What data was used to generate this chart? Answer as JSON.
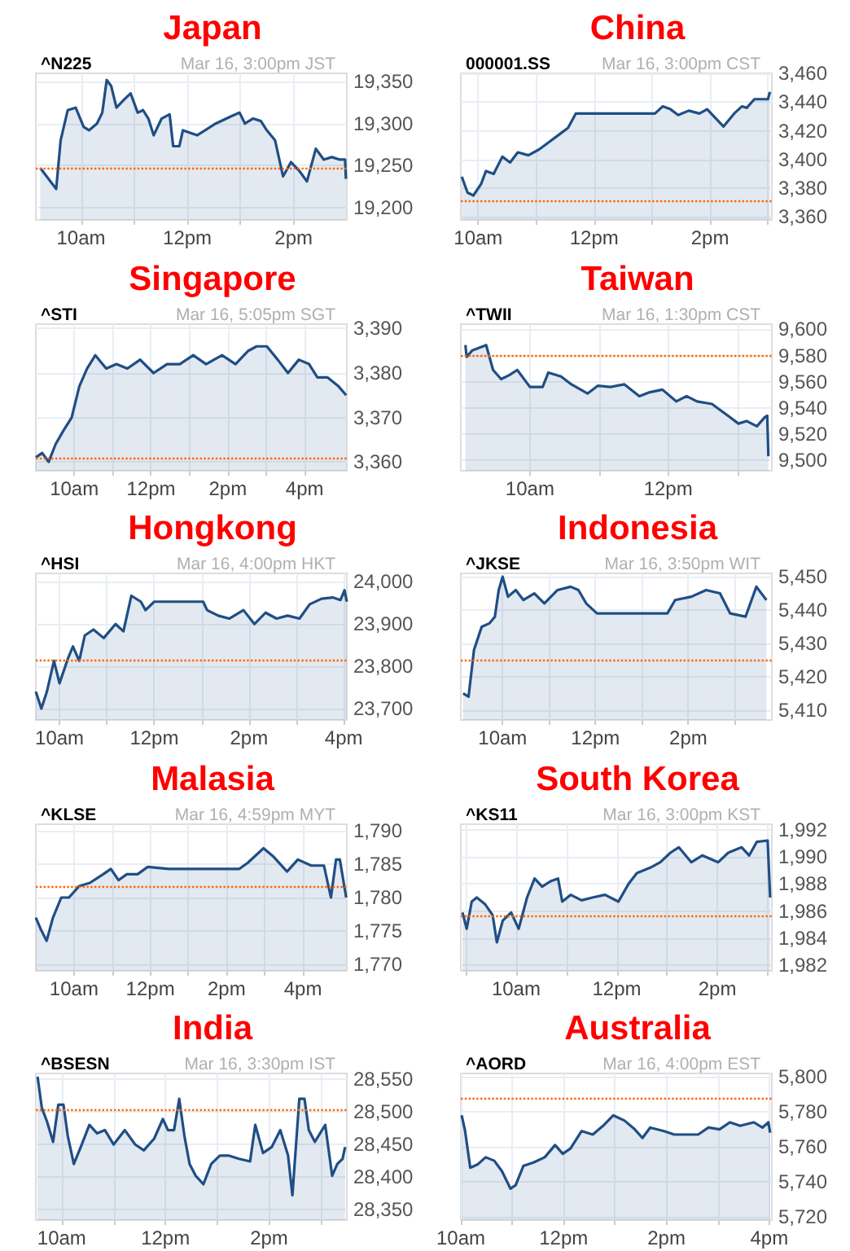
{
  "chart_data": [
    {
      "type": "area",
      "title": "Japan",
      "subtitle": "^N225",
      "annotations": [
        "Mar 16, 3:00pm JST"
      ],
      "color": "#1f4e85",
      "grid": true,
      "x": [
        "--03-16T09:14",
        "--03-16T09:32",
        "--03-16T09:37",
        "--03-16T09:45",
        "--03-16T09:54",
        "--03-16T10:03",
        "--03-16T10:09",
        "--03-16T10:18",
        "--03-16T10:24",
        "--03-16T10:29",
        "--03-16T10:34",
        "--03-16T10:40",
        "--03-16T10:49",
        "--03-16T10:56",
        "--03-16T11:04",
        "--03-16T11:10",
        "--03-16T11:16",
        "--03-16T11:22",
        "--03-16T11:31",
        "--03-16T11:40",
        "--03-16T11:44",
        "--03-16T11:51",
        "--03-16T11:55",
        "--03-16T12:11",
        "--03-16T12:32",
        "--03-16T12:50",
        "--03-16T12:59",
        "--03-16T13:05",
        "--03-16T13:14",
        "--03-16T13:23",
        "--03-16T13:29",
        "--03-16T13:39",
        "--03-16T13:48",
        "--03-16T13:57",
        "--03-16T14:06",
        "--03-16T14:15",
        "--03-16T14:25",
        "--03-16T14:34",
        "--03-16T14:43",
        "--03-16T14:52",
        "--03-16T14:58",
        "--03-16T14:59"
      ],
      "values": [
        19247,
        19222,
        19280,
        19316,
        19319,
        19296,
        19292,
        19300,
        19313,
        19352,
        19345,
        19319,
        19329,
        19336,
        19313,
        19316,
        19306,
        19286,
        19306,
        19311,
        19273,
        19273,
        19292,
        19286,
        19300,
        19309,
        19313,
        19300,
        19306,
        19303,
        19293,
        19280,
        19237,
        19254,
        19244,
        19231,
        19270,
        19257,
        19260,
        19257,
        19257,
        19234
      ],
      "xlim": [
        "--03-16T09:09",
        "--03-16T15:00"
      ],
      "xticks": [
        {
          "value": "--03-16T10:00",
          "label": "10am"
        },
        {
          "value": "--03-16T11:00",
          "label": null
        },
        {
          "value": "--03-16T12:00",
          "label": "12pm"
        },
        {
          "value": "--03-16T13:00",
          "label": null
        },
        {
          "value": "--03-16T14:00",
          "label": "2pm"
        }
      ],
      "ylim": [
        19185,
        19360
      ],
      "yticks": [
        {
          "value": 19200,
          "label": "19,200"
        },
        {
          "value": 19250,
          "label": "19,250"
        },
        {
          "value": 19300,
          "label": "19,300"
        },
        {
          "value": 19350,
          "label": "19,350"
        }
      ],
      "ref_lines": [
        {
          "axis": "y",
          "value": 19247,
          "color": "#ff6600",
          "line_style": "dotted"
        }
      ]
    },
    {
      "type": "area",
      "title": "China",
      "subtitle": "000001.SS",
      "annotations": [
        "Mar 16, 3:00pm CST"
      ],
      "color": "#1f4e85",
      "grid": true,
      "x": [
        "--03-16T09:43",
        "--03-16T09:49",
        "--03-16T09:55",
        "--03-16T10:03",
        "--03-16T10:08",
        "--03-16T10:16",
        "--03-16T10:25",
        "--03-16T10:33",
        "--03-16T10:41",
        "--03-16T10:52",
        "--03-16T11:03",
        "--03-16T11:11",
        "--03-16T11:25",
        "--03-16T11:33",
        "--03-16T11:41",
        "--03-16T13:03",
        "--03-16T13:11",
        "--03-16T13:19",
        "--03-16T13:27",
        "--03-16T13:38",
        "--03-16T13:49",
        "--03-16T13:57",
        "--03-16T14:14",
        "--03-16T14:25",
        "--03-16T14:33",
        "--03-16T14:38",
        "--03-16T14:46",
        "--03-16T15:00",
        "--03-16T15:02"
      ],
      "values": [
        3388,
        3377,
        3375,
        3383,
        3392,
        3390,
        3402,
        3398,
        3405,
        3403,
        3407,
        3411,
        3418,
        3422,
        3432,
        3432,
        3437,
        3435,
        3431,
        3434,
        3432,
        3435,
        3423,
        3432,
        3437,
        3436,
        3442,
        3442,
        3447
      ],
      "xlim": [
        "--03-16T09:42",
        "--03-16T15:04"
      ],
      "xticks": [
        {
          "value": "--03-16T10:00",
          "label": "10am"
        },
        {
          "value": "--03-16T11:00",
          "label": null
        },
        {
          "value": "--03-16T12:00",
          "label": "12pm"
        },
        {
          "value": "--03-16T13:00",
          "label": null
        },
        {
          "value": "--03-16T14:00",
          "label": "2pm"
        },
        {
          "value": "--03-16T15:00",
          "label": null
        }
      ],
      "ylim": [
        3358,
        3460
      ],
      "yticks": [
        {
          "value": 3360,
          "label": "3,360"
        },
        {
          "value": 3380,
          "label": "3,380"
        },
        {
          "value": 3400,
          "label": "3,400"
        },
        {
          "value": 3420,
          "label": "3,420"
        },
        {
          "value": 3440,
          "label": "3,440"
        },
        {
          "value": 3460,
          "label": "3,460"
        }
      ],
      "ref_lines": [
        {
          "axis": "y",
          "value": 3371,
          "color": "#ff6600",
          "line_style": "dotted"
        }
      ]
    },
    {
      "type": "area",
      "title": "Singapore",
      "subtitle": "^STI",
      "annotations": [
        "Mar 16, 5:05pm SGT"
      ],
      "color": "#1f4e85",
      "grid": true,
      "x": [
        "--03-16T09:00",
        "--03-16T09:10",
        "--03-16T09:20",
        "--03-16T09:31",
        "--03-16T09:43",
        "--03-16T09:56",
        "--03-16T10:08",
        "--03-16T10:20",
        "--03-16T10:33",
        "--03-16T10:50",
        "--03-16T11:06",
        "--03-16T11:23",
        "--03-16T11:43",
        "--03-16T12:04",
        "--03-16T12:25",
        "--03-16T12:45",
        "--03-16T13:06",
        "--03-16T13:26",
        "--03-16T13:51",
        "--03-16T14:12",
        "--03-16T14:32",
        "--03-16T14:45",
        "--03-16T15:01",
        "--03-16T15:18",
        "--03-16T15:34",
        "--03-16T15:51",
        "--03-16T16:07",
        "--03-16T16:20",
        "--03-16T16:36",
        "--03-16T16:53",
        "--03-16T17:05"
      ],
      "values": [
        3361,
        3362,
        3360,
        3364,
        3367,
        3370,
        3377,
        3381,
        3384,
        3381,
        3382,
        3381,
        3383,
        3380,
        3382,
        3382,
        3384,
        3382,
        3384,
        3382,
        3385,
        3386,
        3386,
        3383,
        3380,
        3383,
        3382,
        3379,
        3379,
        3377,
        3375
      ],
      "xlim": [
        "--03-16T09:00",
        "--03-16T17:06"
      ],
      "xticks": [
        {
          "value": "--03-16T10:00",
          "label": "10am"
        },
        {
          "value": "--03-16T11:00",
          "label": null
        },
        {
          "value": "--03-16T12:00",
          "label": "12pm"
        },
        {
          "value": "--03-16T13:00",
          "label": null
        },
        {
          "value": "--03-16T14:00",
          "label": "2pm"
        },
        {
          "value": "--03-16T15:00",
          "label": null
        },
        {
          "value": "--03-16T16:00",
          "label": "4pm"
        }
      ],
      "ylim": [
        3358,
        3391
      ],
      "yticks": [
        {
          "value": 3360,
          "label": "3,360"
        },
        {
          "value": 3370,
          "label": "3,370"
        },
        {
          "value": 3380,
          "label": "3,380"
        },
        {
          "value": 3390,
          "label": "3,390"
        }
      ],
      "ref_lines": [
        {
          "axis": "y",
          "value": 3361,
          "color": "#ff6600",
          "line_style": "dotted"
        }
      ]
    },
    {
      "type": "area",
      "title": "Taiwan",
      "subtitle": "^TWII",
      "annotations": [
        "Mar 16, 1:30pm CST"
      ],
      "color": "#1f4e85",
      "grid": true,
      "x": [
        "--03-16T09:04",
        "--03-16T09:05",
        "--03-16T09:10",
        "--03-16T09:22",
        "--03-16T09:28",
        "--03-16T09:35",
        "--03-16T09:42",
        "--03-16T09:49",
        "--03-16T10:00",
        "--03-16T10:11",
        "--03-16T10:16",
        "--03-16T10:27",
        "--03-16T10:36",
        "--03-16T10:50",
        "--03-16T10:59",
        "--03-16T11:10",
        "--03-16T11:22",
        "--03-16T11:35",
        "--03-16T11:44",
        "--03-16T11:55",
        "--03-16T12:07",
        "--03-16T12:16",
        "--03-16T12:25",
        "--03-16T12:38",
        "--03-16T12:52",
        "--03-16T13:01",
        "--03-16T13:08",
        "--03-16T13:17",
        "--03-16T13:24",
        "--03-16T13:26",
        "--03-16T13:27"
      ],
      "values": [
        9588,
        9579,
        9584,
        9588,
        9569,
        9562,
        9565,
        9569,
        9556,
        9556,
        9567,
        9564,
        9558,
        9551,
        9557,
        9556,
        9558,
        9549,
        9552,
        9554,
        9545,
        9549,
        9545,
        9543,
        9534,
        9528,
        9530,
        9526,
        9533,
        9534,
        9503
      ],
      "xlim": [
        "--03-16T09:00",
        "--03-16T13:30"
      ],
      "xticks": [
        {
          "value": "--03-16T10:00",
          "label": "10am"
        },
        {
          "value": "--03-16T11:00",
          "label": null
        },
        {
          "value": "--03-16T12:00",
          "label": "12pm"
        },
        {
          "value": "--03-16T13:00",
          "label": null
        }
      ],
      "ylim": [
        9492,
        9604
      ],
      "yticks": [
        {
          "value": 9500,
          "label": "9,500"
        },
        {
          "value": 9520,
          "label": "9,520"
        },
        {
          "value": 9540,
          "label": "9,540"
        },
        {
          "value": 9560,
          "label": "9,560"
        },
        {
          "value": 9580,
          "label": "9,580"
        },
        {
          "value": 9600,
          "label": "9,600"
        }
      ],
      "ref_lines": [
        {
          "axis": "y",
          "value": 9580,
          "color": "#ff6600",
          "line_style": "dotted"
        }
      ]
    },
    {
      "type": "area",
      "title": "Hongkong",
      "subtitle": "^HSI",
      "annotations": [
        "Mar 16, 4:00pm HKT"
      ],
      "color": "#1f4e85",
      "grid": true,
      "x": [
        "--03-16T09:30",
        "--03-16T09:37",
        "--03-16T09:44",
        "--03-16T09:53",
        "--03-16T10:00",
        "--03-16T10:11",
        "--03-16T10:17",
        "--03-16T10:25",
        "--03-16T10:32",
        "--03-16T10:43",
        "--03-16T10:56",
        "--03-16T11:11",
        "--03-16T11:21",
        "--03-16T11:31",
        "--03-16T11:43",
        "--03-16T11:49",
        "--03-16T12:00",
        "--03-16T13:02",
        "--03-16T13:07",
        "--03-16T13:21",
        "--03-16T13:35",
        "--03-16T13:53",
        "--03-16T14:07",
        "--03-16T14:21",
        "--03-16T14:35",
        "--03-16T14:49",
        "--03-16T15:04",
        "--03-16T15:17",
        "--03-16T15:32",
        "--03-16T15:46",
        "--03-16T15:56",
        "--03-16T16:01",
        "--03-16T16:04"
      ],
      "values": [
        23740,
        23700,
        23740,
        23813,
        23760,
        23820,
        23847,
        23813,
        23873,
        23887,
        23867,
        23900,
        23883,
        23967,
        23953,
        23933,
        23953,
        23953,
        23933,
        23920,
        23913,
        23933,
        23900,
        23927,
        23913,
        23920,
        23913,
        23947,
        23960,
        23963,
        23957,
        23980,
        23953
      ],
      "xlim": [
        "--03-16T09:30",
        "--03-16T16:04"
      ],
      "xticks": [
        {
          "value": "--03-16T10:00",
          "label": "10am"
        },
        {
          "value": "--03-16T11:00",
          "label": null
        },
        {
          "value": "--03-16T12:00",
          "label": "12pm"
        },
        {
          "value": "--03-16T13:00",
          "label": null
        },
        {
          "value": "--03-16T14:00",
          "label": "2pm"
        },
        {
          "value": "--03-16T15:00",
          "label": null
        },
        {
          "value": "--03-16T16:00",
          "label": "4pm"
        }
      ],
      "ylim": [
        23673,
        24020
      ],
      "yticks": [
        {
          "value": 23700,
          "label": "23,700"
        },
        {
          "value": 23800,
          "label": "23,800"
        },
        {
          "value": 23900,
          "label": "23,900"
        },
        {
          "value": 24000,
          "label": "24,000"
        }
      ],
      "ref_lines": [
        {
          "axis": "y",
          "value": 23813,
          "color": "#ff6600",
          "line_style": "dotted"
        }
      ]
    },
    {
      "type": "area",
      "title": "Indonesia",
      "subtitle": "^JKSE",
      "annotations": [
        "Mar 16, 3:50pm WIT"
      ],
      "color": "#1f4e85",
      "grid": true,
      "x": [
        "--03-16T09:09",
        "--03-16T09:16",
        "--03-16T09:23",
        "--03-16T09:33",
        "--03-16T09:43",
        "--03-16T09:50",
        "--03-16T09:55",
        "--03-16T10:00",
        "--03-16T10:07",
        "--03-16T10:17",
        "--03-16T10:27",
        "--03-16T10:41",
        "--03-16T10:54",
        "--03-16T11:11",
        "--03-16T11:28",
        "--03-16T11:38",
        "--03-16T11:48",
        "--03-16T12:02",
        "--03-16T13:33",
        "--03-16T13:43",
        "--03-16T14:04",
        "--03-16T14:23",
        "--03-16T14:41",
        "--03-16T14:54",
        "--03-16T15:14",
        "--03-16T15:28",
        "--03-16T15:41"
      ],
      "values": [
        5415,
        5414,
        5428,
        5435,
        5436,
        5438,
        5446,
        5450,
        5444,
        5446,
        5443,
        5445,
        5442,
        5446,
        5447,
        5446,
        5442,
        5439,
        5439,
        5443,
        5444,
        5446,
        5445,
        5439,
        5438,
        5447,
        5443
      ],
      "xlim": [
        "--03-16T09:06",
        "--03-16T15:48"
      ],
      "xticks": [
        {
          "value": "--03-16T10:00",
          "label": "10am"
        },
        {
          "value": "--03-16T11:00",
          "label": null
        },
        {
          "value": "--03-16T12:00",
          "label": "12pm"
        },
        {
          "value": "--03-16T13:00",
          "label": null
        },
        {
          "value": "--03-16T14:00",
          "label": "2pm"
        },
        {
          "value": "--03-16T15:00",
          "label": null
        }
      ],
      "ylim": [
        5407,
        5451
      ],
      "yticks": [
        {
          "value": 5410,
          "label": "5,410"
        },
        {
          "value": 5420,
          "label": "5,420"
        },
        {
          "value": 5430,
          "label": "5,430"
        },
        {
          "value": 5440,
          "label": "5,440"
        },
        {
          "value": 5450,
          "label": "5,450"
        }
      ],
      "ref_lines": [
        {
          "axis": "y",
          "value": 5425,
          "color": "#ff6600",
          "line_style": "dotted"
        }
      ]
    },
    {
      "type": "area",
      "title": "Malasia",
      "subtitle": "^KLSE",
      "annotations": [
        "Mar 16, 4:59pm MYT"
      ],
      "color": "#1f4e85",
      "grid": true,
      "x": [
        "--03-16T09:00",
        "--03-16T09:08",
        "--03-16T09:17",
        "--03-16T09:27",
        "--03-16T09:40",
        "--03-16T09:52",
        "--03-16T10:08",
        "--03-16T10:25",
        "--03-16T10:46",
        "--03-16T10:58",
        "--03-16T11:10",
        "--03-16T11:23",
        "--03-16T11:40",
        "--03-16T11:56",
        "--03-16T12:29",
        "--03-16T14:20",
        "--03-16T14:33",
        "--03-16T14:58",
        "--03-16T15:14",
        "--03-16T15:35",
        "--03-16T15:52",
        "--03-16T16:13",
        "--03-16T16:33",
        "--03-16T16:44",
        "--03-16T16:52",
        "--03-16T16:58",
        "--03-16T17:08"
      ],
      "values": [
        1777,
        1775.2,
        1773.5,
        1777,
        1780,
        1780,
        1781.7,
        1782.2,
        1783.5,
        1784.3,
        1782.6,
        1783.5,
        1783.5,
        1784.6,
        1784.3,
        1784.3,
        1785.2,
        1787.4,
        1786.1,
        1783.9,
        1785.7,
        1784.8,
        1784.8,
        1780,
        1785.7,
        1785.7,
        1780
      ],
      "xlim": [
        "--03-16T09:00",
        "--03-16T17:09"
      ],
      "xticks": [
        {
          "value": "--03-16T10:00",
          "label": "10am"
        },
        {
          "value": "--03-16T11:00",
          "label": null
        },
        {
          "value": "--03-16T12:00",
          "label": "12pm"
        },
        {
          "value": "--03-16T13:00",
          "label": null
        },
        {
          "value": "--03-16T14:00",
          "label": "2pm"
        },
        {
          "value": "--03-16T15:00",
          "label": null
        },
        {
          "value": "--03-16T16:00",
          "label": "4pm"
        }
      ],
      "ylim": [
        1769,
        1791
      ],
      "yticks": [
        {
          "value": 1770,
          "label": "1,770"
        },
        {
          "value": 1775,
          "label": "1,775"
        },
        {
          "value": 1780,
          "label": "1,780"
        },
        {
          "value": 1785,
          "label": "1,785"
        },
        {
          "value": 1790,
          "label": "1,790"
        }
      ],
      "ref_lines": [
        {
          "axis": "y",
          "value": 1781.7,
          "color": "#ff6600",
          "line_style": "dotted"
        }
      ]
    },
    {
      "type": "area",
      "title": "South Korea",
      "subtitle": "^KS11",
      "annotations": [
        "Mar 16, 3:00pm KST"
      ],
      "color": "#1f4e85",
      "grid": true,
      "x": [
        "--03-16T08:56",
        "--03-16T09:01",
        "--03-16T09:07",
        "--03-16T09:13",
        "--03-16T09:23",
        "--03-16T09:32",
        "--03-16T09:37",
        "--03-16T09:44",
        "--03-16T09:54",
        "--03-16T10:03",
        "--03-16T10:13",
        "--03-16T10:22",
        "--03-16T10:31",
        "--03-16T10:41",
        "--03-16T10:50",
        "--03-16T10:55",
        "--03-16T11:05",
        "--03-16T11:18",
        "--03-16T11:31",
        "--03-16T11:46",
        "--03-16T12:02",
        "--03-16T12:14",
        "--03-16T12:24",
        "--03-16T12:40",
        "--03-16T12:52",
        "--03-16T13:04",
        "--03-16T13:14",
        "--03-16T13:29",
        "--03-16T13:42",
        "--03-16T14:01",
        "--03-16T14:13",
        "--03-16T14:29",
        "--03-16T14:38",
        "--03-16T14:47",
        "--03-16T15:00",
        "--03-16T15:03"
      ],
      "values": [
        1985.9,
        1984.7,
        1986.7,
        1987.0,
        1986.5,
        1985.7,
        1983.7,
        1985.3,
        1985.9,
        1984.7,
        1987.0,
        1988.4,
        1987.8,
        1988.2,
        1988.4,
        1986.7,
        1987.2,
        1986.8,
        1987.0,
        1987.2,
        1986.7,
        1988.0,
        1988.8,
        1989.2,
        1989.6,
        1990.3,
        1990.7,
        1989.6,
        1990.1,
        1989.6,
        1990.3,
        1990.7,
        1990.1,
        1991.1,
        1991.2,
        1987.0
      ],
      "xlim": [
        "--03-16T08:54",
        "--03-16T15:05"
      ],
      "xticks": [
        {
          "value": "--03-16T09:00",
          "label": null
        },
        {
          "value": "--03-16T10:00",
          "label": "10am"
        },
        {
          "value": "--03-16T11:00",
          "label": null
        },
        {
          "value": "--03-16T12:00",
          "label": "12pm"
        },
        {
          "value": "--03-16T13:00",
          "label": null
        },
        {
          "value": "--03-16T14:00",
          "label": "2pm"
        },
        {
          "value": "--03-16T15:00",
          "label": null
        }
      ],
      "ylim": [
        1981.6,
        1992.4
      ],
      "yticks": [
        {
          "value": 1982,
          "label": "1,982"
        },
        {
          "value": 1984,
          "label": "1,984"
        },
        {
          "value": 1986,
          "label": "1,986"
        },
        {
          "value": 1988,
          "label": "1,988"
        },
        {
          "value": 1990,
          "label": "1,990"
        },
        {
          "value": 1992,
          "label": "1,992"
        }
      ],
      "ref_lines": [
        {
          "axis": "y",
          "value": 1985.7,
          "color": "#ff6600",
          "line_style": "dotted"
        }
      ]
    },
    {
      "type": "area",
      "title": "India",
      "subtitle": "^BSESN",
      "annotations": [
        "Mar 16, 3:30pm IST"
      ],
      "color": "#1f4e85",
      "grid": true,
      "x": [
        "--03-16T09:32",
        "--03-16T09:37",
        "--03-16T09:43",
        "--03-16T09:50",
        "--03-16T09:56",
        "--03-16T10:02",
        "--03-16T10:07",
        "--03-16T10:14",
        "--03-16T10:22",
        "--03-16T10:32",
        "--03-16T10:41",
        "--03-16T10:50",
        "--03-16T11:00",
        "--03-16T11:13",
        "--03-16T11:25",
        "--03-16T11:35",
        "--03-16T11:47",
        "--03-16T11:57",
        "--03-16T12:03",
        "--03-16T12:10",
        "--03-16T12:16",
        "--03-16T12:22",
        "--03-16T12:28",
        "--03-16T12:35",
        "--03-16T12:44",
        "--03-16T12:53",
        "--03-16T13:03",
        "--03-16T13:13",
        "--03-16T13:25",
        "--03-16T13:38",
        "--03-16T13:44",
        "--03-16T13:53",
        "--03-16T14:03",
        "--03-16T14:13",
        "--03-16T14:22",
        "--03-16T14:27",
        "--03-16T14:35",
        "--03-16T14:41",
        "--03-16T14:46",
        "--03-16T14:53",
        "--03-16T15:05",
        "--03-16T15:13",
        "--03-16T15:19",
        "--03-16T15:25",
        "--03-16T15:28"
      ],
      "values": [
        28554,
        28506,
        28485,
        28454,
        28511,
        28511,
        28463,
        28420,
        28446,
        28480,
        28467,
        28472,
        28450,
        28472,
        28450,
        28441,
        28459,
        28489,
        28472,
        28472,
        28520,
        28463,
        28420,
        28402,
        28389,
        28420,
        28433,
        28433,
        28428,
        28424,
        28480,
        28437,
        28446,
        28472,
        28433,
        28372,
        28520,
        28520,
        28472,
        28454,
        28480,
        28402,
        28420,
        28428,
        28446
      ],
      "xlim": [
        "--03-16T09:30",
        "--03-16T15:30"
      ],
      "xticks": [
        {
          "value": "--03-16T10:00",
          "label": "10am"
        },
        {
          "value": "--03-16T11:00",
          "label": null
        },
        {
          "value": "--03-16T12:00",
          "label": "12pm"
        },
        {
          "value": "--03-16T13:00",
          "label": null
        },
        {
          "value": "--03-16T14:00",
          "label": "2pm"
        },
        {
          "value": "--03-16T15:00",
          "label": null
        }
      ],
      "ylim": [
        28334,
        28559
      ],
      "yticks": [
        {
          "value": 28350,
          "label": "28,350"
        },
        {
          "value": 28400,
          "label": "28,400"
        },
        {
          "value": 28450,
          "label": "28,450"
        },
        {
          "value": 28500,
          "label": "28,500"
        },
        {
          "value": 28550,
          "label": "28,550"
        }
      ],
      "ref_lines": [
        {
          "axis": "y",
          "value": 28504,
          "color": "#ff6600",
          "line_style": "dotted"
        }
      ]
    },
    {
      "type": "area",
      "title": "Australia",
      "subtitle": "^AORD",
      "annotations": [
        "Mar 16, 4:00pm EST"
      ],
      "color": "#1f4e85",
      "grid": true,
      "x": [
        "--03-16T10:01",
        "--03-16T10:05",
        "--03-16T10:11",
        "--03-16T10:20",
        "--03-16T10:29",
        "--03-16T10:39",
        "--03-16T10:48",
        "--03-16T10:58",
        "--03-16T11:04",
        "--03-16T11:13",
        "--03-16T11:25",
        "--03-16T11:38",
        "--03-16T11:50",
        "--03-16T11:59",
        "--03-16T12:08",
        "--03-16T12:21",
        "--03-16T12:34",
        "--03-16T12:46",
        "--03-16T12:58",
        "--03-16T13:11",
        "--03-16T13:23",
        "--03-16T13:32",
        "--03-16T13:41",
        "--03-16T13:57",
        "--03-16T14:09",
        "--03-16T14:25",
        "--03-16T14:37",
        "--03-16T14:49",
        "--03-16T15:02",
        "--03-16T15:14",
        "--03-16T15:26",
        "--03-16T15:42",
        "--03-16T15:52",
        "--03-16T15:59",
        "--03-16T16:01"
      ],
      "values": [
        5778,
        5769,
        5748,
        5750,
        5754,
        5752,
        5746,
        5736,
        5738,
        5749,
        5751,
        5754,
        5761,
        5756,
        5759,
        5769,
        5767,
        5772,
        5778,
        5775,
        5770,
        5765,
        5771,
        5769,
        5767,
        5767,
        5767,
        5771,
        5770,
        5774,
        5772,
        5774,
        5771,
        5774,
        5768
      ],
      "xlim": [
        "--03-16T10:00",
        "--03-16T16:03"
      ],
      "xticks": [
        {
          "value": "--03-16T10:00",
          "label": "10am"
        },
        {
          "value": "--03-16T11:00",
          "label": null
        },
        {
          "value": "--03-16T12:00",
          "label": "12pm"
        },
        {
          "value": "--03-16T13:00",
          "label": null
        },
        {
          "value": "--03-16T14:00",
          "label": "2pm"
        },
        {
          "value": "--03-16T15:00",
          "label": null
        },
        {
          "value": "--03-16T16:00",
          "label": "4pm"
        }
      ],
      "ylim": [
        5718,
        5802
      ],
      "yticks": [
        {
          "value": 5720,
          "label": "5,720"
        },
        {
          "value": 5740,
          "label": "5,740"
        },
        {
          "value": 5760,
          "label": "5,760"
        },
        {
          "value": 5780,
          "label": "5,780"
        },
        {
          "value": 5800,
          "label": "5,800"
        }
      ],
      "ref_lines": [
        {
          "axis": "y",
          "value": 5788,
          "color": "#ff6600",
          "line_style": "dotted"
        }
      ]
    }
  ]
}
